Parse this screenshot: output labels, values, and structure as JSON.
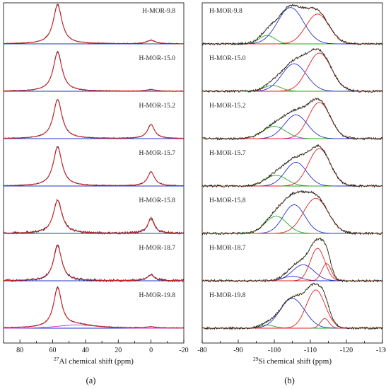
{
  "colors": {
    "experimental": "#1a1a1a",
    "overall_fit": "#cc2222",
    "component_red": "#e02020",
    "component_blue": "#2233cc",
    "component_green": "#22aa22",
    "component_magenta": "#cc33cc",
    "baseline_blue": "#2233cc",
    "baseline_green": "#22aa22"
  },
  "chart_data": [
    {
      "type": "line",
      "panel_label": "(a)",
      "xlabel": "27Al chemical shift (ppm)",
      "xlabel_sup": "27",
      "xlabel_main": "Al chemical shift (ppm)",
      "xlim": [
        90,
        -20
      ],
      "xticks": [
        80,
        60,
        40,
        20,
        0,
        -20
      ],
      "tick_labels": [
        "80",
        "60",
        "40",
        "20",
        "0",
        "-20"
      ],
      "spectra": [
        {
          "name": "H-MOR-9.8",
          "peaks": [
            {
              "center": 57,
              "height": 1.0,
              "width": 3.2
            },
            {
              "center": 0,
              "height": 0.09,
              "width": 3.0
            }
          ]
        },
        {
          "name": "H-MOR-15.0",
          "peaks": [
            {
              "center": 57,
              "height": 1.0,
              "width": 3.2
            },
            {
              "center": 0,
              "height": 0.04,
              "width": 3.0
            }
          ]
        },
        {
          "name": "H-MOR-15.2",
          "peaks": [
            {
              "center": 57,
              "height": 1.0,
              "width": 3.2
            },
            {
              "center": 0,
              "height": 0.36,
              "width": 2.6
            }
          ]
        },
        {
          "name": "H-MOR-15.7",
          "peaks": [
            {
              "center": 57,
              "height": 1.0,
              "width": 3.2
            },
            {
              "center": 0,
              "height": 0.36,
              "width": 2.6
            }
          ]
        },
        {
          "name": "H-MOR-15.8",
          "peaks": [
            {
              "center": 57,
              "height": 0.85,
              "width": 3.2
            },
            {
              "center": 0,
              "height": 0.38,
              "width": 2.4
            }
          ]
        },
        {
          "name": "H-MOR-18.7",
          "peaks": [
            {
              "center": 57,
              "height": 0.9,
              "width": 3.0
            },
            {
              "center": 0,
              "height": 0.15,
              "width": 2.6
            }
          ]
        },
        {
          "name": "H-MOR-19.8",
          "peaks": [
            {
              "center": 57,
              "height": 1.0,
              "width": 3.0
            },
            {
              "center": 45,
              "height": 0.08,
              "width": 12
            },
            {
              "center": 0,
              "height": 0.03,
              "width": 3.0
            }
          ]
        }
      ]
    },
    {
      "type": "line",
      "panel_label": "(b)",
      "xlabel": "29Si chemical shift (ppm)",
      "xlabel_sup": "29",
      "xlabel_main": "Si chemical shift (ppm)",
      "xlim": [
        -80,
        -130
      ],
      "xticks": [
        -80,
        -90,
        -100,
        -110,
        -120,
        -130
      ],
      "tick_labels": [
        "-80",
        "-90",
        "-100",
        "-110",
        "-120",
        "-130"
      ],
      "spectra": [
        {
          "name": "H-MOR-9.8",
          "components": [
            {
              "center": -98,
              "height": 0.22,
              "width": 2.2,
              "color": "green"
            },
            {
              "center": -104.5,
              "height": 0.95,
              "width": 3.6,
              "color": "blue"
            },
            {
              "center": -112,
              "height": 0.78,
              "width": 3.2,
              "color": "red"
            }
          ]
        },
        {
          "name": "H-MOR-15.0",
          "components": [
            {
              "center": -99.5,
              "height": 0.15,
              "width": 2.4,
              "color": "green"
            },
            {
              "center": -105.5,
              "height": 0.72,
              "width": 3.4,
              "color": "blue"
            },
            {
              "center": -112.5,
              "height": 1.0,
              "width": 3.3,
              "color": "red"
            }
          ]
        },
        {
          "name": "H-MOR-15.2",
          "components": [
            {
              "center": -100,
              "height": 0.32,
              "width": 3.2,
              "color": "green"
            },
            {
              "center": -106,
              "height": 0.62,
              "width": 3.2,
              "color": "blue"
            },
            {
              "center": -112.5,
              "height": 0.95,
              "width": 3.0,
              "color": "red"
            }
          ]
        },
        {
          "name": "H-MOR-15.7",
          "components": [
            {
              "center": -100.5,
              "height": 0.28,
              "width": 3.0,
              "color": "green"
            },
            {
              "center": -106,
              "height": 0.62,
              "width": 3.0,
              "color": "blue"
            },
            {
              "center": -112.5,
              "height": 0.98,
              "width": 3.0,
              "color": "red"
            }
          ]
        },
        {
          "name": "H-MOR-15.8",
          "components": [
            {
              "center": -100.5,
              "height": 0.45,
              "width": 3.0,
              "color": "green"
            },
            {
              "center": -105.5,
              "height": 0.75,
              "width": 3.0,
              "color": "blue"
            },
            {
              "center": -111.5,
              "height": 0.92,
              "width": 3.4,
              "color": "red"
            }
          ]
        },
        {
          "name": "H-MOR-18.7",
          "components": [
            {
              "center": -105,
              "height": 0.12,
              "width": 2.5,
              "color": "blue"
            },
            {
              "center": -108,
              "height": 0.42,
              "width": 3.0,
              "color": "blue"
            },
            {
              "center": -112,
              "height": 0.85,
              "width": 2.0,
              "color": "red"
            },
            {
              "center": -114.5,
              "height": 0.45,
              "width": 1.3,
              "color": "red"
            }
          ]
        },
        {
          "name": "H-MOR-19.8",
          "components": [
            {
              "center": -98,
              "height": 0.08,
              "width": 2.0,
              "color": "green"
            },
            {
              "center": -105,
              "height": 0.78,
              "width": 3.4,
              "color": "blue"
            },
            {
              "center": -111.5,
              "height": 1.0,
              "width": 2.6,
              "color": "red"
            },
            {
              "center": -114,
              "height": 0.25,
              "width": 1.2,
              "color": "red"
            }
          ]
        }
      ]
    }
  ]
}
